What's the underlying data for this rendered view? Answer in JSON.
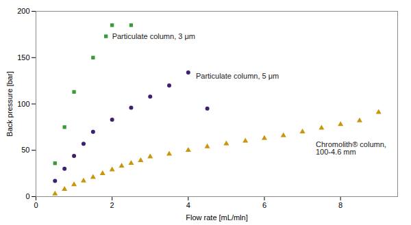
{
  "chart_data": {
    "type": "scatter",
    "xlabel": "Flow rate [mL/mln]",
    "ylabel": "Back pressure [bar]",
    "series": [
      {
        "name": "Particulate column, 3 μm",
        "color": "#3a9a3a",
        "marker": "square",
        "x": [
          0.5,
          0.75,
          1.0,
          1.5,
          2.0,
          2.5
        ],
        "values": [
          36,
          75,
          113,
          150,
          185,
          185
        ]
      },
      {
        "name": "Particulate column, 5 μm",
        "color": "#3d2070",
        "marker": "circle",
        "x": [
          0.5,
          0.75,
          1.0,
          1.25,
          1.5,
          2.0,
          2.5,
          3.0,
          3.5,
          4.0,
          4.5
        ],
        "values": [
          17,
          30,
          44,
          57,
          70,
          83,
          96,
          108,
          120,
          134,
          95
        ]
      },
      {
        "name": "Chromolith® column,\n100-4.6 mm",
        "color": "#c8960c",
        "marker": "triangle",
        "x": [
          0.5,
          0.75,
          1.0,
          1.25,
          1.5,
          1.75,
          2.0,
          2.25,
          2.5,
          2.75,
          3.0,
          3.5,
          4.0,
          4.5,
          5.0,
          5.5,
          6.0,
          6.5,
          7.0,
          7.5,
          8.0,
          8.5,
          9.0
        ],
        "values": [
          3,
          8,
          13,
          17,
          21,
          25,
          29,
          33,
          36,
          39,
          43,
          46,
          50,
          54,
          57,
          60,
          63,
          66,
          70,
          74,
          78,
          82,
          91
        ]
      }
    ],
    "xlim": [
      0,
      9.5
    ],
    "xticks": [
      0,
      2,
      4,
      6,
      8
    ],
    "ylim": [
      0,
      200
    ],
    "yticks": [
      0,
      50,
      100,
      150,
      200
    ],
    "grid": false
  }
}
